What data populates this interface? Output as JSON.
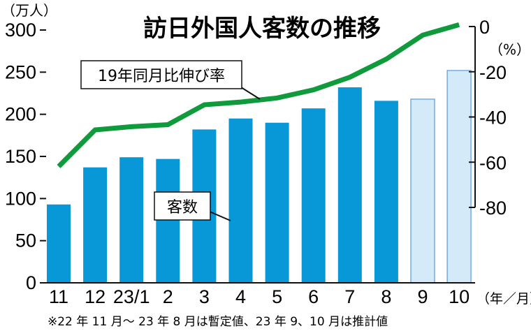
{
  "chart_data": {
    "type": "bar+line",
    "title": "訪日外国人客数の推移",
    "categories": [
      "11",
      "12",
      "23/1",
      "2",
      "3",
      "4",
      "5",
      "6",
      "7",
      "8",
      "9",
      "10"
    ],
    "xunit": "（年／月）",
    "left_axis": {
      "unit": "（万人）",
      "ticks": [
        "0",
        "50",
        "100",
        "150",
        "200",
        "250",
        "300"
      ],
      "range": [
        0,
        300
      ]
    },
    "right_axis": {
      "unit": "（%）",
      "ticks": [
        "0",
        "-20",
        "-40",
        "-60",
        "-80"
      ],
      "range": [
        -80,
        0
      ]
    },
    "series": [
      {
        "name": "客数",
        "type": "bar",
        "axis": "left",
        "values": [
          93,
          137,
          149,
          147,
          182,
          195,
          190,
          207,
          232,
          216,
          218,
          252
        ],
        "estimated": [
          false,
          false,
          false,
          false,
          false,
          false,
          false,
          false,
          false,
          false,
          true,
          true
        ]
      },
      {
        "name": "19年同月比伸び率",
        "type": "line",
        "axis": "right",
        "values": [
          -61.9,
          -45.7,
          -44.3,
          -43.4,
          -34.6,
          -33.4,
          -31.6,
          -28.0,
          -22.4,
          -14.4,
          -3.8,
          0.8
        ]
      }
    ],
    "colors": {
      "bar": "#0898d8",
      "bar_estimated": "#d4eaf8",
      "bar_estimated_border": "#5a9ad6",
      "line": "#0f9a3c"
    },
    "footnote": "※22 年 11 月〜 23 年 8 月は暫定値、23 年 9、10 月は推計値"
  }
}
